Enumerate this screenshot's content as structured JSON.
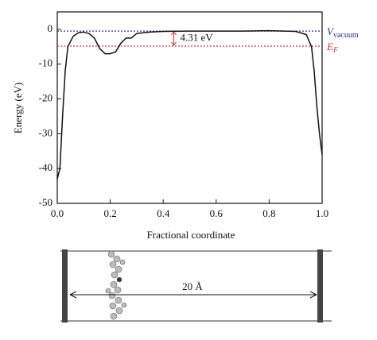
{
  "chart_data": {
    "type": "line",
    "xlabel": "Fractional coordinate",
    "ylabel": "Energy (eV)",
    "xlim": [
      0,
      1
    ],
    "ylim": [
      -50,
      5
    ],
    "xticks": [
      {
        "value": 0,
        "label": "0.0"
      },
      {
        "value": 0.2,
        "label": "0.2"
      },
      {
        "value": 0.4,
        "label": "0.4"
      },
      {
        "value": 0.6,
        "label": "0.6"
      },
      {
        "value": 0.8,
        "label": "0.8"
      },
      {
        "value": 1,
        "label": "1.0"
      }
    ],
    "yticks": [
      0,
      -10,
      -20,
      -30,
      -40,
      -50
    ],
    "series": [
      {
        "color": "#111111",
        "x": [
          0.0,
          0.01,
          0.02,
          0.03,
          0.04,
          0.06,
          0.08,
          0.1,
          0.12,
          0.14,
          0.16,
          0.18,
          0.2,
          0.22,
          0.24,
          0.26,
          0.28,
          0.3,
          0.35,
          0.4,
          0.5,
          0.6,
          0.7,
          0.8,
          0.9,
          0.94,
          0.96,
          0.97,
          0.98,
          0.99,
          1.0
        ],
        "values": [
          -43,
          -40,
          -25,
          -12,
          -5,
          -2,
          -1,
          -0.8,
          -1.2,
          -2.5,
          -5.5,
          -7,
          -7,
          -6.5,
          -4,
          -2.5,
          -2.5,
          -1.2,
          -0.8,
          -0.6,
          -0.5,
          -0.5,
          -0.5,
          -0.4,
          -0.6,
          -1.5,
          -5,
          -12,
          -22,
          -30,
          -36
        ]
      }
    ],
    "reference_lines": [
      {
        "label": {
          "main": "V",
          "sub": "vacuum"
        },
        "value": -0.5,
        "color": "#2b2b9a"
      },
      {
        "label": {
          "main": "E",
          "sub": "F"
        },
        "value": -4.81,
        "color": "#d9363e"
      }
    ],
    "annotation": "4.31 eV",
    "structure_label": "20 Å"
  }
}
